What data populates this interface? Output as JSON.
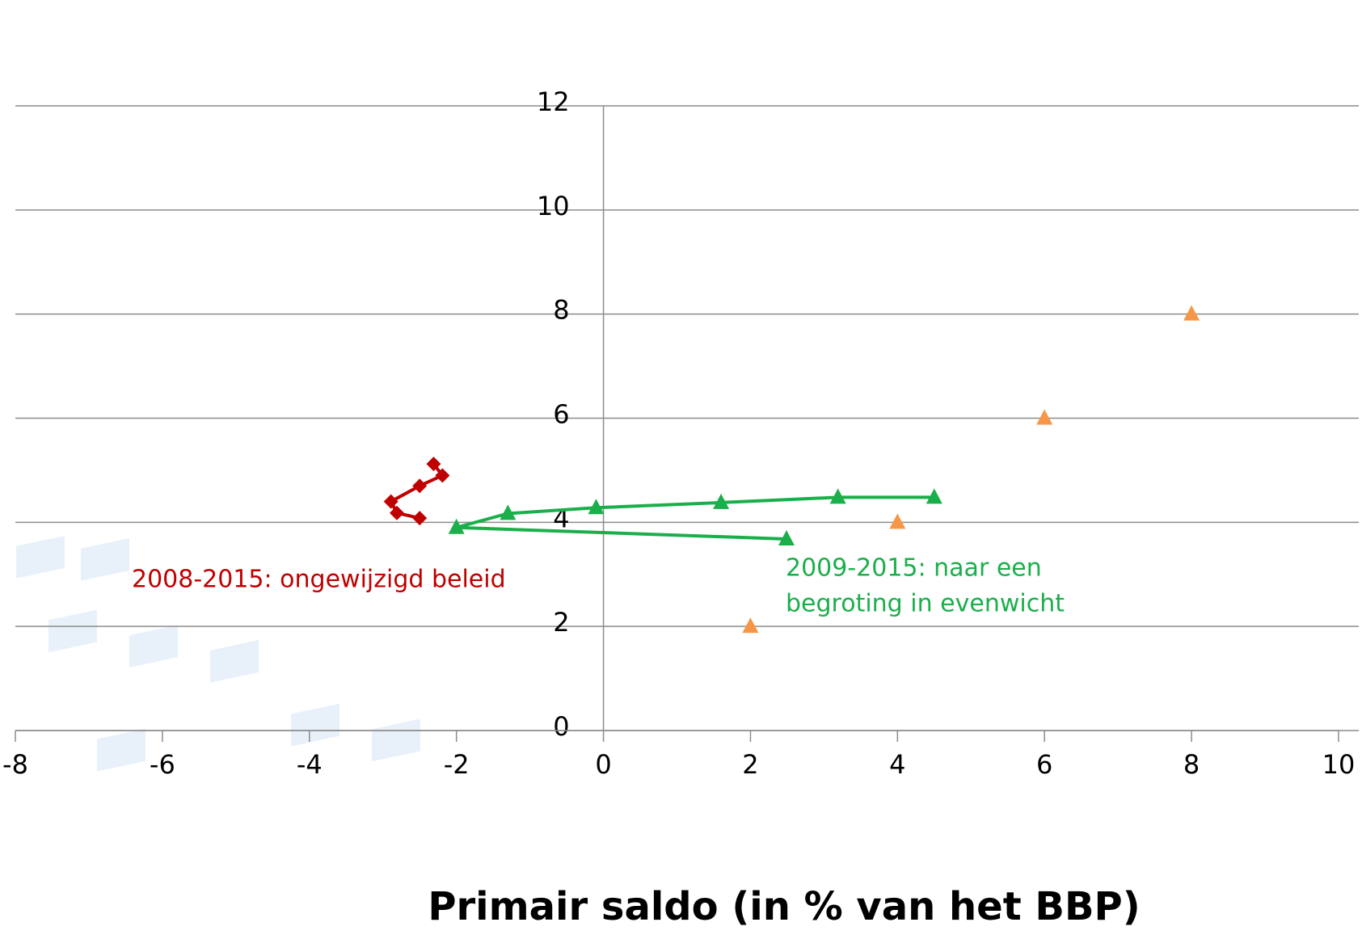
{
  "chart_data": {
    "type": "scatter",
    "x_label": "Primair saldo (in % van het BBP)",
    "xlim": [
      -8,
      10
    ],
    "xticks": [
      -8,
      -6,
      -4,
      -2,
      0,
      2,
      4,
      6,
      8,
      10
    ],
    "ylim": [
      0,
      12
    ],
    "yticks": [
      0,
      2,
      4,
      6,
      8,
      10,
      12
    ],
    "grid": true,
    "series": [
      {
        "color": "#c00000",
        "marker": "diamond",
        "line": true,
        "x": [
          -2.31,
          -2.19,
          -2.5,
          -2.89,
          -2.81,
          -2.5
        ],
        "values": [
          5.12,
          4.9,
          4.7,
          4.4,
          4.18,
          4.08
        ]
      },
      {
        "color": "#1aaf4b",
        "marker": "triangle",
        "line": true,
        "x": [
          2.49,
          -2,
          -1.3,
          -0.1,
          1.6,
          3.19,
          4.5
        ],
        "values": [
          3.68,
          3.9,
          4.17,
          4.28,
          4.38,
          4.48,
          4.48
        ]
      },
      {
        "color": "#f79646",
        "marker": "triangle",
        "line": false,
        "x": [
          2,
          4,
          6,
          8
        ],
        "values": [
          2,
          4,
          6,
          8
        ]
      }
    ],
    "annotations": [
      {
        "lines": [
          "2008-2015: ongewijzigd beleid"
        ],
        "color": "#c00000"
      },
      {
        "lines": [
          "2009-2015: naar een",
          "begroting in evenwicht"
        ],
        "color": "#1aaf4b"
      }
    ]
  }
}
